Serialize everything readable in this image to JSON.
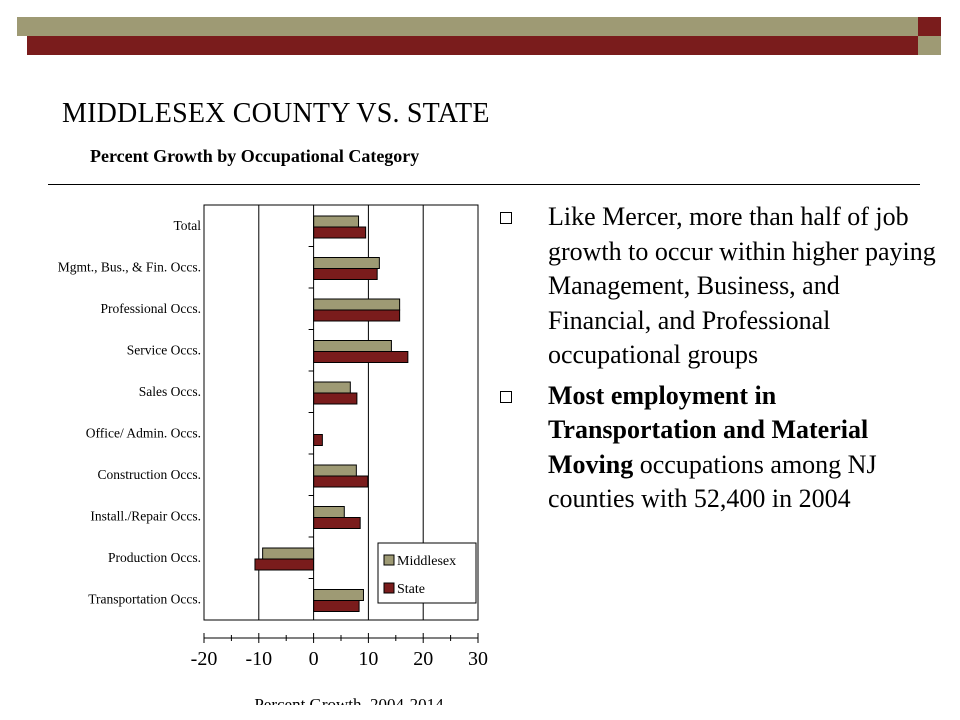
{
  "slide": {
    "title": "MIDDLESEX COUNTY VS. STATE",
    "subtitle": "Percent Growth by Occupational Category",
    "bullets": [
      {
        "text": "Like Mercer, more than half of job growth to occur within higher paying Management, Business, and Financial, and Professional occupational groups"
      },
      {
        "bold": "Most employment in Transportation and Material Moving",
        "text": " occupations among NJ counties with 52,400 in 2004"
      }
    ]
  },
  "colors": {
    "olive": "#9e9a74",
    "maroon": "#7a1c1c",
    "bullet_marker": "hollow-square"
  },
  "chart_data": {
    "type": "bar",
    "orientation": "horizontal",
    "categories": [
      "Total",
      "Mgmt., Bus., & Fin. Occs.",
      "Professional Occs.",
      "Service Occs.",
      "Sales Occs.",
      "Office/ Admin. Occs.",
      "Construction Occs.",
      "Install./Repair Occs.",
      "Production Occs.",
      "Transportation Occs."
    ],
    "series": [
      {
        "name": "Middlesex",
        "color": "#9e9a74",
        "values": [
          8.2,
          12.0,
          15.7,
          14.2,
          6.7,
          0,
          7.8,
          5.6,
          -9.3,
          9.1
        ]
      },
      {
        "name": "State",
        "color": "#7a1c1c",
        "values": [
          9.5,
          11.6,
          15.7,
          17.2,
          7.9,
          1.6,
          9.9,
          8.5,
          -10.7,
          8.3
        ]
      }
    ],
    "xlabel": "Percent Growth, 2004-2014",
    "xlim": [
      -20,
      30
    ],
    "xticks": [
      "-20",
      "-10",
      "0",
      "10",
      "20",
      "30"
    ],
    "grid": "vertical at -20, -10, 10, 20",
    "legend_position": "bottom-right"
  }
}
